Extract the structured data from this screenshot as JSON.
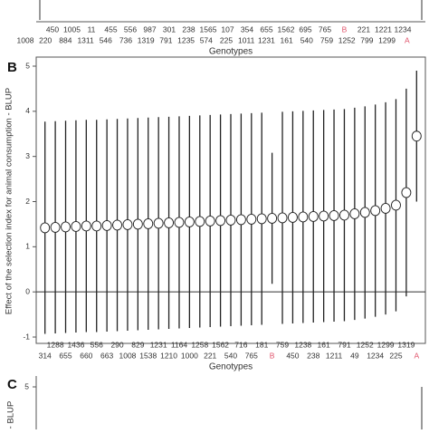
{
  "panel_a": {
    "labels_top": [
      "450",
      "1005",
      "11",
      "455",
      "556",
      "987",
      "301",
      "238",
      "1565",
      "107",
      "354",
      "655",
      "1562",
      "695",
      "765",
      "B",
      "221",
      "1221",
      "1234"
    ],
    "labels_bottom": [
      "1008",
      "220",
      "884",
      "1311",
      "546",
      "736",
      "1319",
      "791",
      "1235",
      "574",
      "225",
      "1011",
      "1231",
      "161",
      "540",
      "759",
      "1252",
      "799",
      "1299",
      "A"
    ],
    "x_label": "Genotypes"
  },
  "chart_data": {
    "type": "errorbar",
    "panel": "B",
    "y_label": "Effect of the selection index for animal consumption - BLUP",
    "x_label": "Genotypes",
    "categories": [
      "314",
      "1288",
      "655",
      "1436",
      "660",
      "556",
      "663",
      "290",
      "1008",
      "829",
      "1538",
      "1231",
      "1210",
      "1164",
      "1000",
      "1258",
      "221",
      "1562",
      "540",
      "716",
      "765",
      "181",
      "B",
      "759",
      "450",
      "1238",
      "238",
      "161",
      "1211",
      "791",
      "49",
      "1252",
      "1234",
      "1299",
      "225",
      "1319",
      "A"
    ],
    "values": [
      1.42,
      1.43,
      1.44,
      1.45,
      1.46,
      1.46,
      1.47,
      1.48,
      1.49,
      1.5,
      1.51,
      1.52,
      1.53,
      1.54,
      1.55,
      1.56,
      1.57,
      1.58,
      1.59,
      1.6,
      1.61,
      1.62,
      1.63,
      1.64,
      1.65,
      1.66,
      1.67,
      1.68,
      1.69,
      1.7,
      1.73,
      1.76,
      1.8,
      1.85,
      1.92,
      2.2,
      3.45
    ],
    "errors": [
      2.35,
      2.35,
      2.35,
      2.35,
      2.35,
      2.35,
      2.35,
      2.35,
      2.35,
      2.35,
      2.35,
      2.35,
      2.35,
      2.35,
      2.35,
      2.35,
      2.35,
      2.35,
      2.35,
      2.35,
      2.35,
      2.35,
      1.45,
      2.35,
      2.35,
      2.35,
      2.35,
      2.35,
      2.35,
      2.35,
      2.35,
      2.35,
      2.35,
      2.35,
      2.35,
      2.3,
      1.45
    ],
    "highlight": [
      "B",
      "A"
    ],
    "highlight_color": "#e0526a",
    "color": "#222222",
    "ylim": [
      -1,
      5
    ],
    "yticks": [
      -1,
      0,
      1,
      2,
      3,
      4,
      5
    ],
    "zero_line": true
  },
  "panel_c": {
    "panel": "C",
    "ytick": "5",
    "y_label": "- BLUP"
  }
}
